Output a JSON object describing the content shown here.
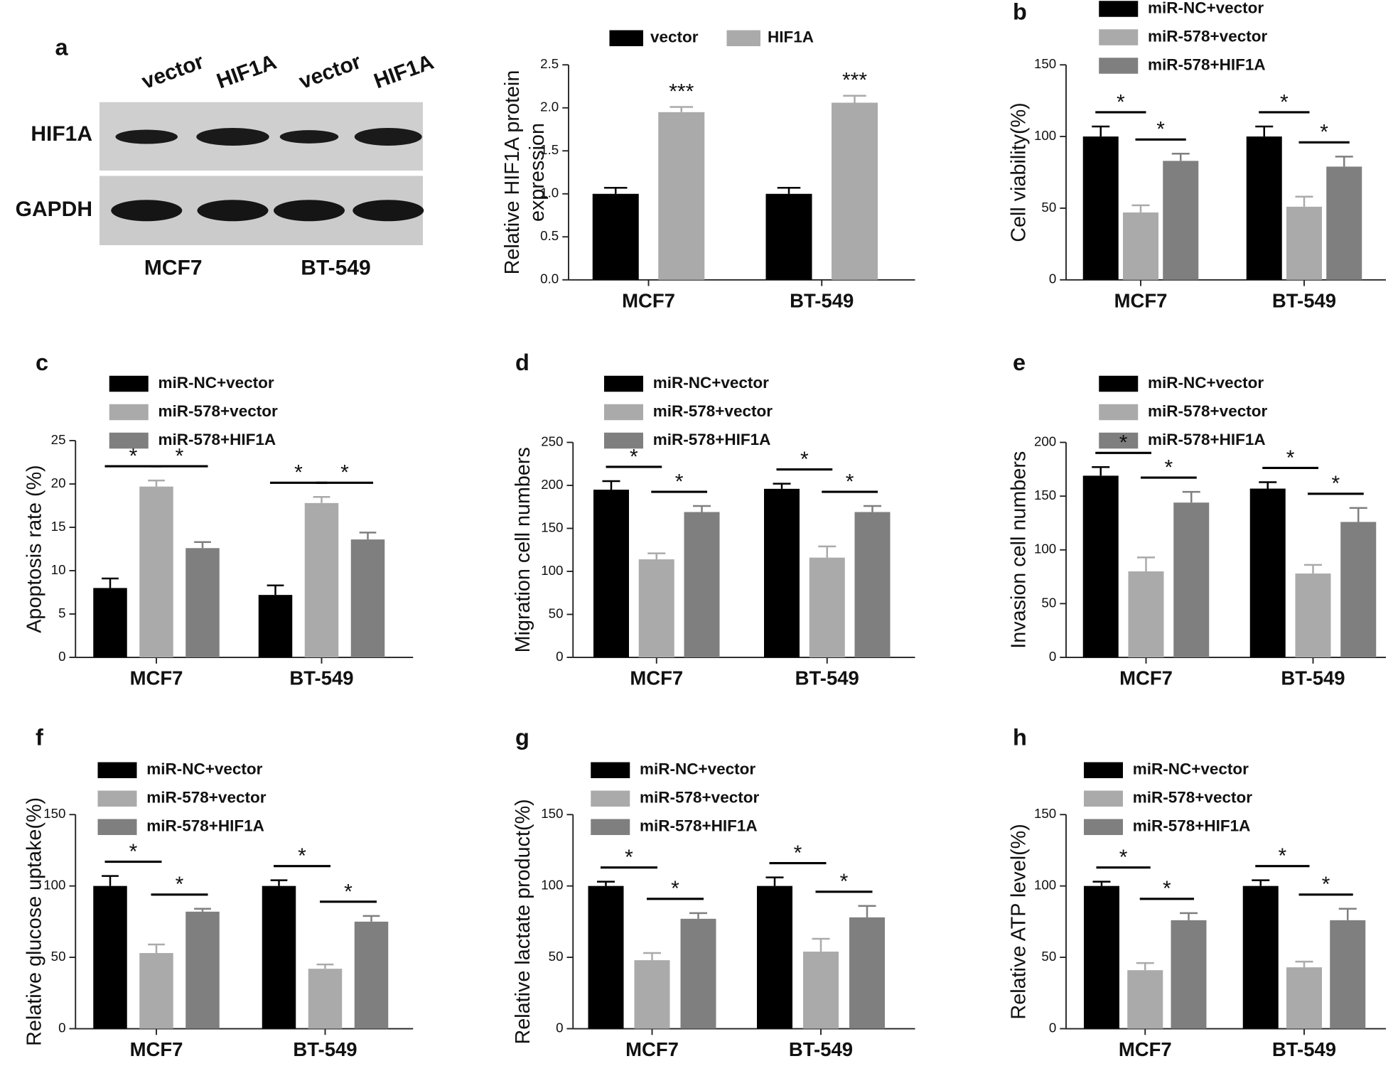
{
  "blot": {
    "panel_label": "a",
    "lanes": [
      "vector",
      "HIF1A",
      "vector",
      "HIF1A"
    ],
    "rows": [
      "HIF1A",
      "GAPDH"
    ],
    "cell_lines": [
      "MCF7",
      "BT-549"
    ]
  },
  "chart_data": [
    {
      "type": "bar",
      "ylabel": [
        "Relative HIF1A protein",
        "expression"
      ],
      "categories": [
        "MCF7",
        "BT-549"
      ],
      "series": [
        {
          "name": "vector",
          "color": "#000000",
          "values": [
            1.0,
            1.0
          ],
          "errors": [
            0.07,
            0.07
          ]
        },
        {
          "name": "HIF1A",
          "color": "#aaaaaa",
          "values": [
            1.95,
            2.06
          ],
          "errors": [
            0.06,
            0.08
          ]
        }
      ],
      "ylim": [
        0,
        2.5
      ],
      "yticks": [
        {
          "value": 0,
          "label": "0.0"
        },
        0.5,
        {
          "value": 1,
          "label": "1.0"
        },
        1.5,
        {
          "value": 2,
          "label": "2.0"
        },
        2.5
      ],
      "annotations": [
        {
          "category": "MCF7",
          "series": [
            "HIF1A"
          ],
          "text": "***"
        },
        {
          "category": "BT-549",
          "series": [
            "HIF1A"
          ],
          "text": "***"
        }
      ]
    },
    {
      "type": "bar",
      "panel_label": "b",
      "ylabel": "Cell viability(%)",
      "categories": [
        "MCF7",
        "BT-549"
      ],
      "series": [
        {
          "name": "miR-NC+vector",
          "color": "#000000",
          "values": [
            100,
            100
          ],
          "errors": [
            7,
            7
          ]
        },
        {
          "name": "miR-578+vector",
          "color": "#aaaaaa",
          "values": [
            47,
            51
          ],
          "errors": [
            5,
            7
          ]
        },
        {
          "name": "miR-578+HIF1A",
          "color": "#7f7f7f",
          "values": [
            83,
            79
          ],
          "errors": [
            5,
            7
          ]
        }
      ],
      "ylim": [
        0,
        150
      ],
      "yticks": [
        0,
        50,
        100,
        150
      ],
      "annotations": [
        {
          "category": "MCF7",
          "series": [
            "miR-NC+vector",
            "miR-578+vector"
          ],
          "text": "*"
        },
        {
          "category": "MCF7",
          "series": [
            "miR-578+vector",
            "miR-578+HIF1A"
          ],
          "text": "*"
        },
        {
          "category": "BT-549",
          "series": [
            "miR-NC+vector",
            "miR-578+vector"
          ],
          "text": "*"
        },
        {
          "category": "BT-549",
          "series": [
            "miR-578+vector",
            "miR-578+HIF1A"
          ],
          "text": "*"
        }
      ]
    },
    {
      "type": "bar",
      "panel_label": "c",
      "ylabel": "Apoptosis rate (%)",
      "categories": [
        "MCF7",
        "BT-549"
      ],
      "series": [
        {
          "name": "miR-NC+vector",
          "color": "#000000",
          "values": [
            8.0,
            7.2
          ],
          "errors": [
            1.1,
            1.1
          ]
        },
        {
          "name": "miR-578+vector",
          "color": "#aaaaaa",
          "values": [
            19.7,
            17.8
          ],
          "errors": [
            0.7,
            0.7
          ]
        },
        {
          "name": "miR-578+HIF1A",
          "color": "#7f7f7f",
          "values": [
            12.6,
            13.6
          ],
          "errors": [
            0.7,
            0.8
          ]
        }
      ],
      "ylim": [
        0,
        25
      ],
      "yticks": [
        0,
        5,
        10,
        15,
        20,
        25
      ],
      "annotations": [
        {
          "category": "MCF7",
          "series": [
            "miR-NC+vector",
            "miR-578+vector"
          ],
          "text": "*"
        },
        {
          "category": "MCF7",
          "series": [
            "miR-578+vector",
            "miR-578+HIF1A"
          ],
          "text": "*"
        },
        {
          "category": "BT-549",
          "series": [
            "miR-NC+vector",
            "miR-578+vector"
          ],
          "text": "*"
        },
        {
          "category": "BT-549",
          "series": [
            "miR-578+vector",
            "miR-578+HIF1A"
          ],
          "text": "*"
        }
      ]
    },
    {
      "type": "bar",
      "panel_label": "d",
      "ylabel": "Migration cell numbers",
      "categories": [
        "MCF7",
        "BT-549"
      ],
      "series": [
        {
          "name": "miR-NC+vector",
          "color": "#000000",
          "values": [
            195,
            196
          ],
          "errors": [
            10,
            6
          ]
        },
        {
          "name": "miR-578+vector",
          "color": "#aaaaaa",
          "values": [
            114,
            116
          ],
          "errors": [
            7,
            13
          ]
        },
        {
          "name": "miR-578+HIF1A",
          "color": "#7f7f7f",
          "values": [
            169,
            169
          ],
          "errors": [
            7,
            7
          ]
        }
      ],
      "ylim": [
        0,
        250
      ],
      "yticks": [
        0,
        50,
        100,
        150,
        200,
        250
      ],
      "annotations": [
        {
          "category": "MCF7",
          "series": [
            "miR-NC+vector",
            "miR-578+vector"
          ],
          "text": "*"
        },
        {
          "category": "MCF7",
          "series": [
            "miR-578+vector",
            "miR-578+HIF1A"
          ],
          "text": "*"
        },
        {
          "category": "BT-549",
          "series": [
            "miR-NC+vector",
            "miR-578+vector"
          ],
          "text": "*"
        },
        {
          "category": "BT-549",
          "series": [
            "miR-578+vector",
            "miR-578+HIF1A"
          ],
          "text": "*"
        }
      ]
    },
    {
      "type": "bar",
      "panel_label": "e",
      "ylabel": "Invasion cell numbers",
      "categories": [
        "MCF7",
        "BT-549"
      ],
      "series": [
        {
          "name": "miR-NC+vector",
          "color": "#000000",
          "values": [
            169,
            157
          ],
          "errors": [
            8,
            6
          ]
        },
        {
          "name": "miR-578+vector",
          "color": "#aaaaaa",
          "values": [
            80,
            78
          ],
          "errors": [
            13,
            8
          ]
        },
        {
          "name": "miR-578+HIF1A",
          "color": "#7f7f7f",
          "values": [
            144,
            126
          ],
          "errors": [
            10,
            13
          ]
        }
      ],
      "ylim": [
        0,
        200
      ],
      "yticks": [
        0,
        50,
        100,
        150,
        200
      ],
      "annotations": [
        {
          "category": "MCF7",
          "series": [
            "miR-NC+vector",
            "miR-578+vector"
          ],
          "text": "*"
        },
        {
          "category": "MCF7",
          "series": [
            "miR-578+vector",
            "miR-578+HIF1A"
          ],
          "text": "*"
        },
        {
          "category": "BT-549",
          "series": [
            "miR-NC+vector",
            "miR-578+vector"
          ],
          "text": "*"
        },
        {
          "category": "BT-549",
          "series": [
            "miR-578+vector",
            "miR-578+HIF1A"
          ],
          "text": "*"
        }
      ]
    },
    {
      "type": "bar",
      "panel_label": "f",
      "ylabel": "Relative glucose uptake(%)",
      "categories": [
        "MCF7",
        "BT-549"
      ],
      "series": [
        {
          "name": "miR-NC+vector",
          "color": "#000000",
          "values": [
            100,
            100
          ],
          "errors": [
            7,
            4
          ]
        },
        {
          "name": "miR-578+vector",
          "color": "#aaaaaa",
          "values": [
            53,
            42
          ],
          "errors": [
            6,
            3
          ]
        },
        {
          "name": "miR-578+HIF1A",
          "color": "#7f7f7f",
          "values": [
            82,
            75
          ],
          "errors": [
            2,
            4
          ]
        }
      ],
      "ylim": [
        0,
        150
      ],
      "yticks": [
        0,
        50,
        100,
        150
      ],
      "annotations": [
        {
          "category": "MCF7",
          "series": [
            "miR-NC+vector",
            "miR-578+vector"
          ],
          "text": "*"
        },
        {
          "category": "MCF7",
          "series": [
            "miR-578+vector",
            "miR-578+HIF1A"
          ],
          "text": "*"
        },
        {
          "category": "BT-549",
          "series": [
            "miR-NC+vector",
            "miR-578+vector"
          ],
          "text": "*"
        },
        {
          "category": "BT-549",
          "series": [
            "miR-578+vector",
            "miR-578+HIF1A"
          ],
          "text": "*"
        }
      ]
    },
    {
      "type": "bar",
      "panel_label": "g",
      "ylabel": "Relative lactate product(%)",
      "categories": [
        "MCF7",
        "BT-549"
      ],
      "series": [
        {
          "name": "miR-NC+vector",
          "color": "#000000",
          "values": [
            100,
            100
          ],
          "errors": [
            3,
            6
          ]
        },
        {
          "name": "miR-578+vector",
          "color": "#aaaaaa",
          "values": [
            48,
            54
          ],
          "errors": [
            5,
            9
          ]
        },
        {
          "name": "miR-578+HIF1A",
          "color": "#7f7f7f",
          "values": [
            77,
            78
          ],
          "errors": [
            4,
            8
          ]
        }
      ],
      "ylim": [
        0,
        150
      ],
      "yticks": [
        0,
        50,
        100,
        150
      ],
      "annotations": [
        {
          "category": "MCF7",
          "series": [
            "miR-NC+vector",
            "miR-578+vector"
          ],
          "text": "*"
        },
        {
          "category": "MCF7",
          "series": [
            "miR-578+vector",
            "miR-578+HIF1A"
          ],
          "text": "*"
        },
        {
          "category": "BT-549",
          "series": [
            "miR-NC+vector",
            "miR-578+vector"
          ],
          "text": "*"
        },
        {
          "category": "BT-549",
          "series": [
            "miR-578+vector",
            "miR-578+HIF1A"
          ],
          "text": "*"
        }
      ]
    },
    {
      "type": "bar",
      "panel_label": "h",
      "ylabel": "Relative ATP level(%)",
      "categories": [
        "MCF7",
        "BT-549"
      ],
      "series": [
        {
          "name": "miR-NC+vector",
          "color": "#000000",
          "values": [
            100,
            100
          ],
          "errors": [
            3,
            4
          ]
        },
        {
          "name": "miR-578+vector",
          "color": "#aaaaaa",
          "values": [
            41,
            43
          ],
          "errors": [
            5,
            4
          ]
        },
        {
          "name": "miR-578+HIF1A",
          "color": "#7f7f7f",
          "values": [
            76,
            76
          ],
          "errors": [
            5,
            8
          ]
        }
      ],
      "ylim": [
        0,
        150
      ],
      "yticks": [
        0,
        50,
        100,
        150
      ],
      "annotations": [
        {
          "category": "MCF7",
          "series": [
            "miR-NC+vector",
            "miR-578+vector"
          ],
          "text": "*"
        },
        {
          "category": "MCF7",
          "series": [
            "miR-578+vector",
            "miR-578+HIF1A"
          ],
          "text": "*"
        },
        {
          "category": "BT-549",
          "series": [
            "miR-NC+vector",
            "miR-578+vector"
          ],
          "text": "*"
        },
        {
          "category": "BT-549",
          "series": [
            "miR-578+vector",
            "miR-578+HIF1A"
          ],
          "text": "*"
        }
      ]
    }
  ]
}
